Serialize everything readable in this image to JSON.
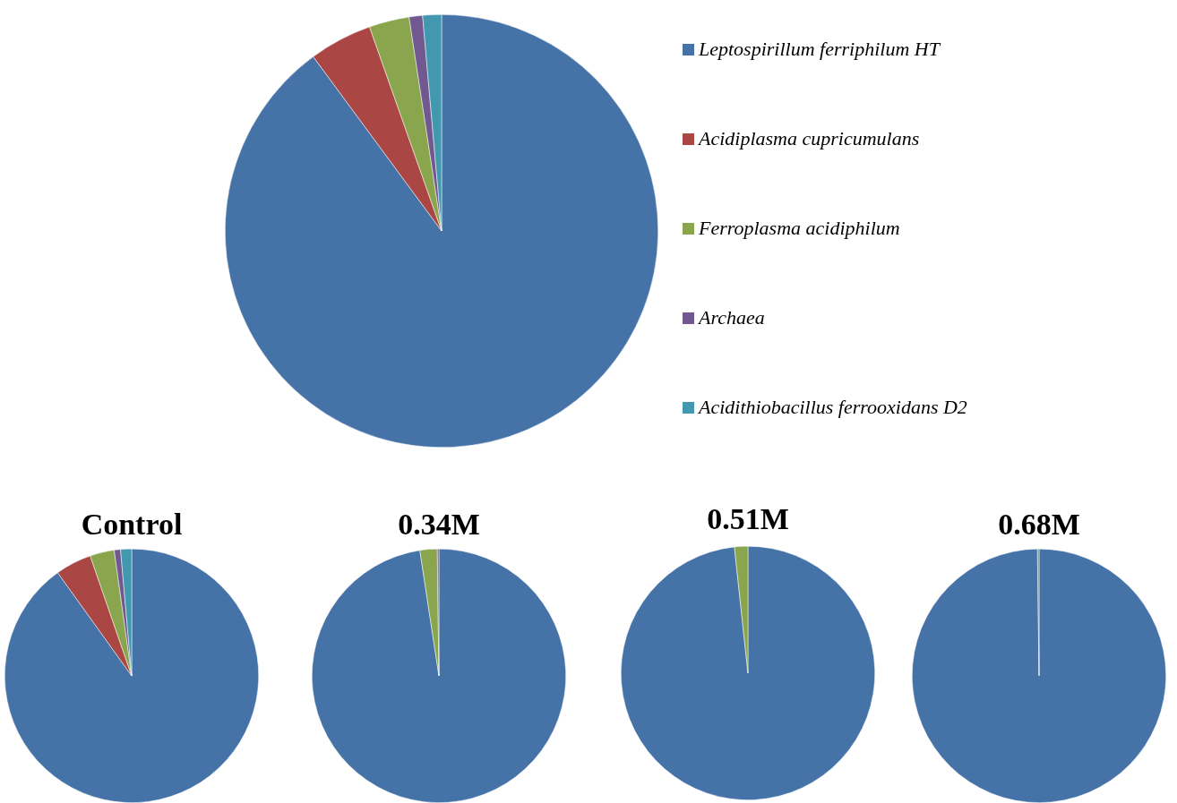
{
  "chart_data": [
    {
      "type": "pie",
      "categories": [
        "Leptospirillum ferriphilum HT",
        "Acidiplasma cupricumulans",
        "Ferroplasma acidiphilum",
        "Archaea",
        "Acidithiobacillus ferrooxidans D2"
      ],
      "values": [
        89.9,
        4.7,
        3.0,
        1.0,
        1.4
      ],
      "colors": [
        "#4572a7",
        "#aa4643",
        "#89a54e",
        "#71588f",
        "#4198af"
      ],
      "legend": "right"
    },
    {
      "type": "pie",
      "title": "Control",
      "categories": [
        null,
        null,
        null,
        null,
        null
      ],
      "values": [
        90.1,
        4.6,
        3.1,
        0.8,
        1.4
      ],
      "colors": [
        "#4572a7",
        "#aa4643",
        "#89a54e",
        "#71588f",
        "#4198af"
      ]
    },
    {
      "type": "pie",
      "title": "0.34M",
      "categories": [
        null,
        null,
        null,
        null,
        null
      ],
      "values": [
        97.6,
        0,
        2.2,
        0.2,
        0
      ],
      "colors": [
        "#4572a7",
        "#aa4643",
        "#89a54e",
        "#71588f",
        "#4198af"
      ]
    },
    {
      "type": "pie",
      "title": "0.51M",
      "categories": [
        null,
        null,
        null,
        null,
        null
      ],
      "values": [
        98.3,
        0,
        1.7,
        0,
        0
      ],
      "colors": [
        "#4572a7",
        "#aa4643",
        "#89a54e",
        "#71588f",
        "#4198af"
      ]
    },
    {
      "type": "pie",
      "title": "0.68M",
      "categories": [
        null,
        null,
        null,
        null,
        null
      ],
      "values": [
        99.8,
        0,
        0,
        0,
        0.2
      ],
      "colors": [
        "#4572a7",
        "#aa4643",
        "#89a54e",
        "#71588f",
        "#4198af"
      ]
    }
  ]
}
